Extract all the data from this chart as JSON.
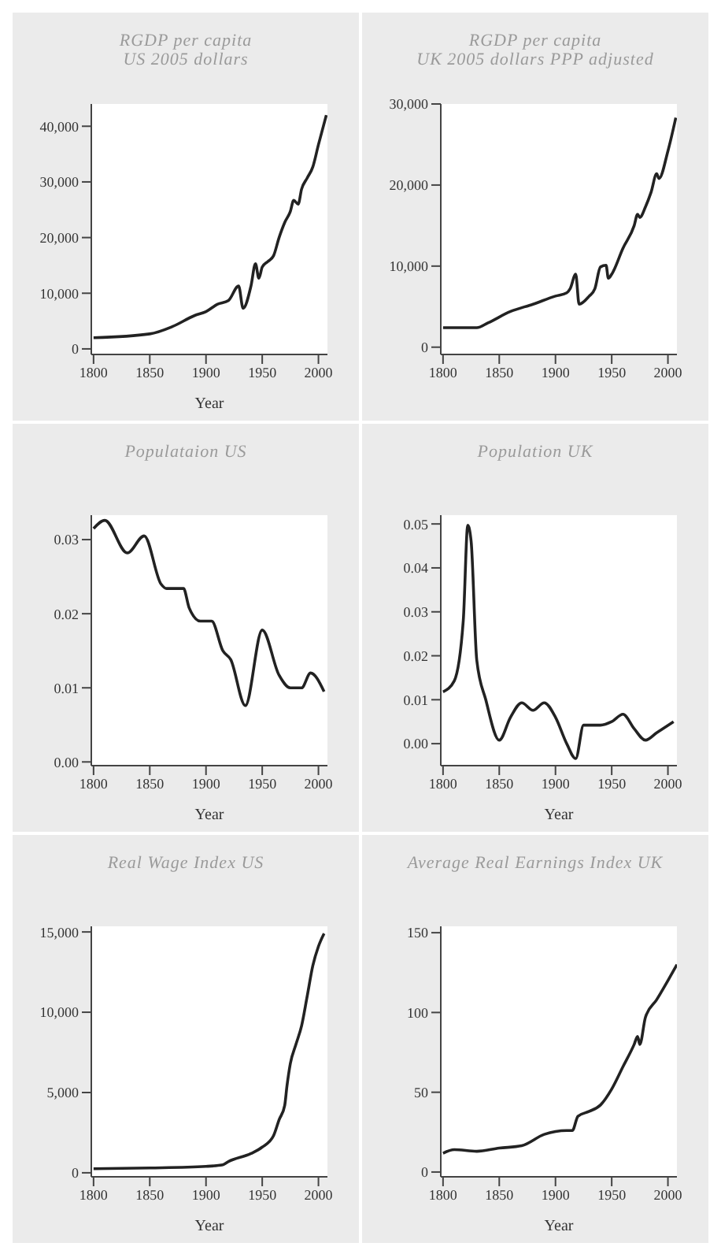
{
  "chart_data": [
    {
      "type": "line",
      "title": "RGDP per capita",
      "subtitle": "US 2005 dollars",
      "xlabel": "Year",
      "x": [
        1800,
        1850,
        1870,
        1890,
        1900,
        1910,
        1920,
        1929,
        1933,
        1940,
        1944,
        1947,
        1950,
        1955,
        1960,
        1965,
        1970,
        1975,
        1978,
        1982,
        1985,
        1990,
        1995,
        2000,
        2007
      ],
      "series": [
        {
          "color": "#222222",
          "values": [
            2000,
            2700,
            4000,
            6000,
            6700,
            8000,
            8700,
            11300,
            7300,
            11300,
            15300,
            12700,
            14700,
            15700,
            16700,
            20000,
            22700,
            24700,
            26700,
            26000,
            28700,
            30700,
            32700,
            36700,
            42000
          ]
        }
      ],
      "xlim": [
        1798,
        2008
      ],
      "xticks": [
        1800,
        1850,
        1900,
        1950,
        2000
      ],
      "ylim": [
        -1000,
        44000
      ],
      "yticks": [
        0,
        {
          "value": 10000,
          "label": "10,000"
        },
        {
          "value": 20000,
          "label": "20,000"
        },
        {
          "value": 30000,
          "label": "30,000"
        },
        {
          "value": 40000,
          "label": "40,000"
        }
      ],
      "marker": "none",
      "line_style": "solid"
    },
    {
      "type": "line",
      "title": "Populataion US",
      "xlabel": "Year",
      "x": [
        1800,
        1810,
        1830,
        1845,
        1860,
        1865,
        1880,
        1885,
        1895,
        1905,
        1915,
        1922,
        1935,
        1950,
        1965,
        1975,
        1985,
        1993,
        2005
      ],
      "series": [
        {
          "color": "#222222",
          "values": [
            0.0315,
            0.0326,
            0.0282,
            0.0305,
            0.024,
            0.0234,
            0.0234,
            0.0208,
            0.019,
            0.019,
            0.015,
            0.0138,
            0.0076,
            0.0178,
            0.0117,
            0.01,
            0.01,
            0.012,
            0.0095
          ]
        }
      ],
      "xlim": [
        1798,
        2008
      ],
      "xticks": [
        1800,
        1850,
        1900,
        1950,
        2000
      ],
      "ylim": [
        -0.0005,
        0.0333
      ],
      "yticks": [
        {
          "value": 0,
          "label": "0.00"
        },
        0.01,
        0.02,
        0.03
      ],
      "marker": "none",
      "line_style": "solid"
    },
    {
      "type": "line",
      "title": "Real Wage Index US",
      "xlabel": "Year",
      "x": [
        1800,
        1850,
        1900,
        1915,
        1920,
        1940,
        1950,
        1960,
        1965,
        1970,
        1972,
        1975,
        1980,
        1985,
        1990,
        1995,
        2000,
        2005
      ],
      "series": [
        {
          "color": "#222222",
          "values": [
            250,
            300,
            400,
            500,
            700,
            1200,
            1600,
            2300,
            3300,
            4200,
            5400,
            6800,
            8000,
            9150,
            11000,
            12900,
            14100,
            14900
          ]
        }
      ],
      "xlim": [
        1798,
        2008
      ],
      "xticks": [
        1800,
        1850,
        1900,
        1950,
        2000
      ],
      "ylim": [
        -250,
        15350
      ],
      "yticks": [
        0,
        {
          "value": 5000,
          "label": "5,000"
        },
        {
          "value": 10000,
          "label": "10,000"
        },
        {
          "value": 15000,
          "label": "15,000"
        }
      ],
      "marker": "none",
      "line_style": "solid"
    },
    {
      "type": "line",
      "title": "RGDP per capita",
      "subtitle": "UK 2005 dollars PPP adjusted",
      "x": [
        1800,
        1830,
        1840,
        1860,
        1880,
        1900,
        1910,
        1913,
        1918,
        1921,
        1930,
        1935,
        1940,
        1945,
        1947,
        1950,
        1960,
        1970,
        1973,
        1975,
        1980,
        1985,
        1990,
        1992,
        2000,
        2007
      ],
      "series": [
        {
          "color": "#222222",
          "values": [
            2400,
            2400,
            3000,
            4400,
            5300,
            6300,
            6700,
            7200,
            9000,
            5300,
            6300,
            7200,
            9900,
            10100,
            8500,
            9000,
            12200,
            15000,
            16400,
            16000,
            17300,
            19100,
            21400,
            20800,
            24200,
            28300
          ]
        }
      ],
      "xlim": [
        1798,
        2008
      ],
      "xticks": [
        1800,
        1850,
        1900,
        1950,
        2000
      ],
      "ylim": [
        -900,
        30000
      ],
      "yticks": [
        0,
        {
          "value": 10000,
          "label": "10,000"
        },
        {
          "value": 20000,
          "label": "20,000"
        },
        {
          "value": 30000,
          "label": "30,000"
        }
      ],
      "marker": "none",
      "line_style": "solid"
    },
    {
      "type": "line",
      "title": "Population UK",
      "xlabel": "Year",
      "x": [
        1800,
        1810,
        1818,
        1822,
        1825,
        1830,
        1838,
        1850,
        1860,
        1870,
        1880,
        1890,
        1900,
        1910,
        1918,
        1925,
        1940,
        1950,
        1960,
        1970,
        1980,
        1990,
        2005
      ],
      "series": [
        {
          "color": "#222222",
          "values": [
            0.0118,
            0.0143,
            0.028,
            0.0497,
            0.046,
            0.019,
            0.01,
            0.0008,
            0.006,
            0.0093,
            0.0076,
            0.0093,
            0.006,
            0,
            -0.0034,
            0.0042,
            0.0042,
            0.005,
            0.0067,
            0.0034,
            0.0008,
            0.0025,
            0.005
          ]
        }
      ],
      "xlim": [
        1798,
        2008
      ],
      "xticks": [
        1800,
        1850,
        1900,
        1950,
        2000
      ],
      "ylim": [
        -0.005,
        0.052
      ],
      "yticks": [
        {
          "value": 0,
          "label": "0.00"
        },
        0.01,
        0.02,
        0.03,
        0.04,
        0.05
      ],
      "marker": "none",
      "line_style": "solid"
    },
    {
      "type": "line",
      "title": "Average Real Earnings Index UK",
      "xlabel": "Year",
      "x": [
        1800,
        1810,
        1830,
        1850,
        1870,
        1890,
        1910,
        1915,
        1920,
        1930,
        1940,
        1950,
        1960,
        1970,
        1973,
        1975,
        1980,
        1990,
        2000,
        2008
      ],
      "series": [
        {
          "color": "#222222",
          "values": [
            11.8,
            14,
            13,
            15,
            16.5,
            23.6,
            26,
            26,
            35,
            38,
            42,
            52,
            66,
            80,
            85,
            80,
            97,
            108,
            120,
            130
          ]
        }
      ],
      "xlim": [
        1798,
        2008
      ],
      "xticks": [
        1800,
        1850,
        1900,
        1950,
        2000
      ],
      "ylim": [
        -3,
        154
      ],
      "yticks": [
        0,
        50,
        100,
        150
      ],
      "marker": "none",
      "line_style": "solid"
    }
  ]
}
